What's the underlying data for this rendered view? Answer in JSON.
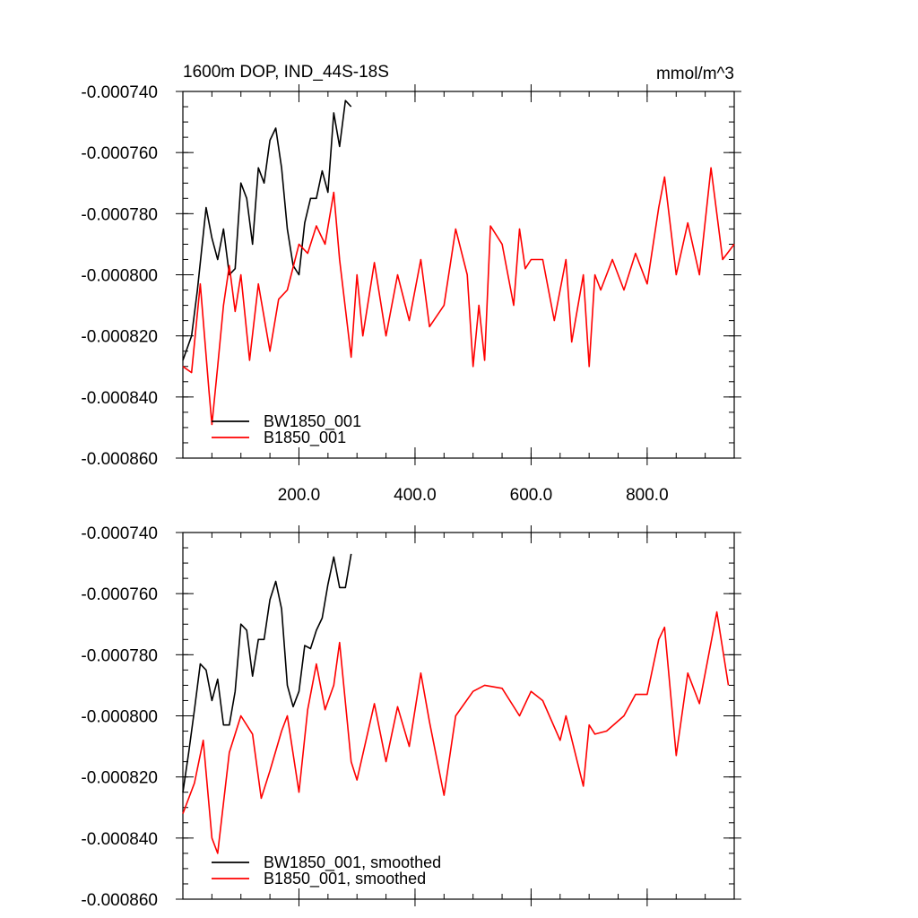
{
  "chart_data": [
    {
      "type": "line",
      "title": "1600m DOP, IND_44S-18S",
      "units": "mmol/m^3",
      "xlim": [
        0,
        950
      ],
      "ylim": [
        -0.00086,
        -0.00074
      ],
      "yticks": [
        -0.00074,
        -0.00076,
        -0.00078,
        -0.0008,
        -0.00082,
        -0.00084,
        -0.00086
      ],
      "ytick_labels": [
        "-0.000740",
        "-0.000760",
        "-0.000780",
        "-0.000800",
        "-0.000820",
        "-0.000840",
        "-0.000860"
      ],
      "xticks": [
        200,
        400,
        600,
        800
      ],
      "xtick_labels": [
        "200.0",
        "400.0",
        "600.0",
        "800.0"
      ],
      "legend_position": "bottom-left",
      "series": [
        {
          "name": "BW1850_001",
          "color": "#000000",
          "x": [
            0,
            15,
            25,
            40,
            50,
            60,
            70,
            80,
            90,
            100,
            110,
            120,
            130,
            140,
            150,
            160,
            170,
            180,
            190,
            200,
            210,
            220,
            230,
            240,
            250,
            260,
            270,
            280,
            290
          ],
          "y": [
            -0.000828,
            -0.00082,
            -0.000805,
            -0.000778,
            -0.000788,
            -0.000795,
            -0.000785,
            -0.0008,
            -0.000798,
            -0.00077,
            -0.000775,
            -0.00079,
            -0.000765,
            -0.00077,
            -0.000756,
            -0.000752,
            -0.000765,
            -0.000785,
            -0.000797,
            -0.0008,
            -0.000783,
            -0.000775,
            -0.000775,
            -0.000766,
            -0.000773,
            -0.000747,
            -0.000758,
            -0.000743,
            -0.000745
          ]
        },
        {
          "name": "B1850_001",
          "color": "#ff0000",
          "x": [
            0,
            15,
            30,
            45,
            50,
            60,
            70,
            80,
            90,
            100,
            115,
            130,
            150,
            165,
            180,
            200,
            215,
            230,
            245,
            260,
            270,
            290,
            300,
            310,
            330,
            350,
            370,
            390,
            410,
            425,
            450,
            470,
            490,
            500,
            510,
            520,
            530,
            550,
            570,
            580,
            590,
            600,
            620,
            640,
            660,
            670,
            690,
            700,
            710,
            720,
            740,
            760,
            780,
            800,
            820,
            830,
            850,
            870,
            890,
            910,
            930,
            950
          ],
          "y": [
            -0.00083,
            -0.000832,
            -0.000803,
            -0.000838,
            -0.000849,
            -0.00083,
            -0.00081,
            -0.000797,
            -0.000812,
            -0.0008,
            -0.000828,
            -0.000803,
            -0.000825,
            -0.000808,
            -0.000805,
            -0.00079,
            -0.000793,
            -0.000784,
            -0.00079,
            -0.000773,
            -0.000795,
            -0.000827,
            -0.0008,
            -0.00082,
            -0.000796,
            -0.00082,
            -0.0008,
            -0.000815,
            -0.000795,
            -0.000817,
            -0.00081,
            -0.000785,
            -0.0008,
            -0.00083,
            -0.00081,
            -0.000828,
            -0.000784,
            -0.00079,
            -0.00081,
            -0.000785,
            -0.000798,
            -0.000795,
            -0.000795,
            -0.000815,
            -0.000795,
            -0.000822,
            -0.0008,
            -0.00083,
            -0.0008,
            -0.000805,
            -0.000795,
            -0.000805,
            -0.000793,
            -0.000803,
            -0.000778,
            -0.000768,
            -0.0008,
            -0.000783,
            -0.0008,
            -0.000765,
            -0.000795,
            -0.00079
          ]
        }
      ]
    },
    {
      "type": "line",
      "xlim": [
        0,
        950
      ],
      "ylim": [
        -0.00086,
        -0.00074
      ],
      "yticks": [
        -0.00074,
        -0.00076,
        -0.00078,
        -0.0008,
        -0.00082,
        -0.00084,
        -0.00086
      ],
      "ytick_labels": [
        "-0.000740",
        "-0.000760",
        "-0.000780",
        "-0.000800",
        "-0.000820",
        "-0.000840",
        "-0.000860"
      ],
      "xticks": [
        200,
        400,
        600,
        800
      ],
      "legend_position": "bottom-left",
      "series": [
        {
          "name": "BW1850_001, smoothed",
          "color": "#000000",
          "x": [
            0,
            10,
            20,
            30,
            40,
            50,
            60,
            70,
            80,
            90,
            100,
            110,
            120,
            130,
            140,
            150,
            160,
            170,
            180,
            190,
            200,
            210,
            220,
            230,
            240,
            250,
            260,
            270,
            280,
            290
          ],
          "y": [
            -0.000825,
            -0.000812,
            -0.000798,
            -0.000783,
            -0.000785,
            -0.000795,
            -0.000788,
            -0.000803,
            -0.000803,
            -0.000792,
            -0.00077,
            -0.000772,
            -0.000787,
            -0.000775,
            -0.000775,
            -0.000762,
            -0.000756,
            -0.000765,
            -0.00079,
            -0.000797,
            -0.000792,
            -0.000777,
            -0.000778,
            -0.000772,
            -0.000768,
            -0.000757,
            -0.000748,
            -0.000758,
            -0.000758,
            -0.000747
          ]
        },
        {
          "name": "B1850_001, smoothed",
          "color": "#ff0000",
          "x": [
            0,
            20,
            35,
            50,
            60,
            80,
            100,
            120,
            135,
            150,
            170,
            180,
            200,
            215,
            230,
            245,
            260,
            270,
            290,
            300,
            330,
            350,
            370,
            390,
            410,
            425,
            450,
            470,
            500,
            520,
            550,
            580,
            600,
            620,
            650,
            660,
            690,
            700,
            710,
            730,
            760,
            780,
            800,
            820,
            830,
            850,
            870,
            890,
            920,
            940
          ],
          "y": [
            -0.000832,
            -0.000822,
            -0.000808,
            -0.00084,
            -0.000845,
            -0.000812,
            -0.0008,
            -0.000806,
            -0.000827,
            -0.000818,
            -0.000805,
            -0.0008,
            -0.000825,
            -0.000798,
            -0.000783,
            -0.000798,
            -0.00079,
            -0.000776,
            -0.000815,
            -0.000821,
            -0.000796,
            -0.000815,
            -0.000797,
            -0.00081,
            -0.000786,
            -0.000802,
            -0.000826,
            -0.0008,
            -0.000792,
            -0.00079,
            -0.000791,
            -0.0008,
            -0.000792,
            -0.000795,
            -0.000808,
            -0.0008,
            -0.000823,
            -0.000803,
            -0.000806,
            -0.000805,
            -0.0008,
            -0.000793,
            -0.000793,
            -0.000775,
            -0.000771,
            -0.000813,
            -0.000786,
            -0.000796,
            -0.000766,
            -0.00079
          ]
        }
      ]
    }
  ]
}
